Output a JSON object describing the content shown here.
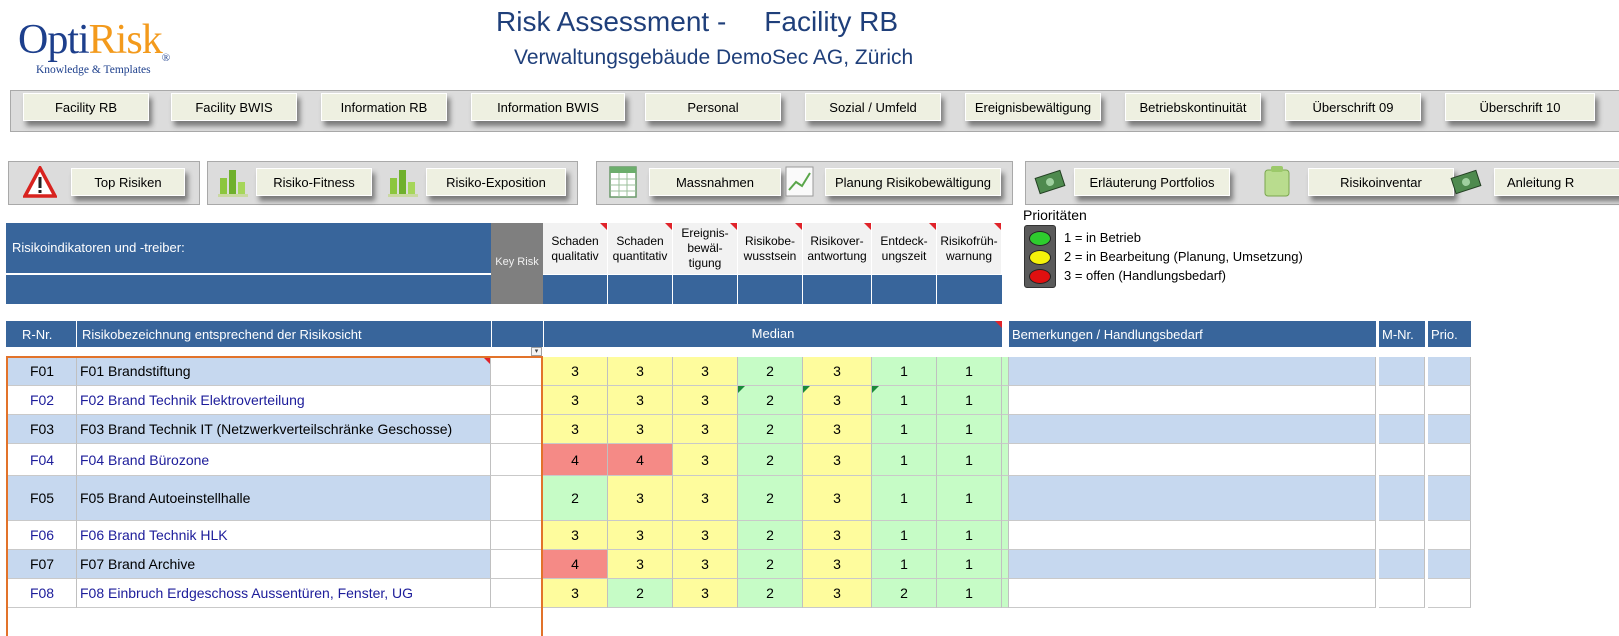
{
  "logo": {
    "part1": "Opti",
    "part2": "Risk",
    "reg": "®",
    "tagline": "Knowledge & Templates"
  },
  "title": {
    "line1a": "Risk Assessment -",
    "line1b": "Facility RB",
    "line2": "Verwaltungsgebäude DemoSec AG, Zürich"
  },
  "nav_tabs": [
    "Facility RB",
    "Facility BWIS",
    "Information  RB",
    "Information  BWIS",
    "Personal",
    "Sozial / Umfeld",
    "Ereignisbewältigung",
    "Betriebskontinuität",
    "Überschrift 09",
    "Überschrift 10"
  ],
  "nav_tools": {
    "top_risiken": "Top Risiken",
    "risiko_fitness": "Risiko-Fitness",
    "risiko_exposition": "Risiko-Exposition",
    "massnahmen": "Massnahmen",
    "planung": "Planung Risikobewältigung",
    "erlaeuterung": "Erläuterung Portfolios",
    "risikoinventar": "Risikoinventar",
    "anleitung": "Anleitung R"
  },
  "indicators": {
    "label": "Risikoindikatoren und -treiber:",
    "key_risk": "Key Risk",
    "columns": [
      "Schaden qualitativ",
      "Schaden quantitativ",
      "Ereignis-bewäl-tigung",
      "Risikobe-wusstsein",
      "Risikover-antwortung",
      "Entdeck-ungszeit",
      "Risikofrüh-warnung"
    ]
  },
  "priorities": {
    "title": "Prioritäten",
    "items": [
      "1 = in Betrieb",
      "2 = in Bearbeitung (Planung, Umsetzung)",
      "3 = offen (Handlungsbedarf)"
    ],
    "colors": {
      "green": "#2ecc2e",
      "yellow": "#f5f20a",
      "red": "#e01010"
    }
  },
  "table": {
    "headers": {
      "rnr": "R-Nr.",
      "bezeichnung": "Risikobezeichnung entsprechend der Risikosicht",
      "median": "Median",
      "bemerkungen": "Bemerkungen / Handlungsbedarf",
      "mnr": "M-Nr.",
      "prio": "Prio."
    },
    "rows": [
      {
        "id": "F01",
        "name": "F01  Brandstiftung",
        "values": [
          "3",
          "3",
          "3",
          "2",
          "3",
          "1",
          "1"
        ],
        "colors": [
          "y",
          "y",
          "y",
          "g",
          "y",
          "g",
          "g"
        ]
      },
      {
        "id": "F02",
        "name": "F02  Brand Technik Elektroverteilung",
        "values": [
          "3",
          "3",
          "3",
          "2",
          "3",
          "1",
          "1"
        ],
        "colors": [
          "y",
          "y",
          "y",
          "g",
          "y",
          "g",
          "g"
        ]
      },
      {
        "id": "F03",
        "name": "F03  Brand Technik IT (Netzwerkverteilschränke Geschosse)",
        "values": [
          "3",
          "3",
          "3",
          "2",
          "3",
          "1",
          "1"
        ],
        "colors": [
          "y",
          "y",
          "y",
          "g",
          "y",
          "g",
          "g"
        ]
      },
      {
        "id": "F04",
        "name": "F04  Brand Bürozone",
        "values": [
          "4",
          "4",
          "3",
          "2",
          "3",
          "1",
          "1"
        ],
        "colors": [
          "r",
          "r",
          "y",
          "g",
          "y",
          "g",
          "g"
        ]
      },
      {
        "id": "F05",
        "name": "F05  Brand Autoeinstellhalle",
        "values": [
          "2",
          "3",
          "3",
          "2",
          "3",
          "1",
          "1"
        ],
        "colors": [
          "g",
          "y",
          "y",
          "g",
          "y",
          "g",
          "g"
        ]
      },
      {
        "id": "F06",
        "name": "F06  Brand Technik HLK",
        "values": [
          "3",
          "3",
          "3",
          "2",
          "3",
          "1",
          "1"
        ],
        "colors": [
          "y",
          "y",
          "y",
          "g",
          "y",
          "g",
          "g"
        ]
      },
      {
        "id": "F07",
        "name": "F07  Brand Archive",
        "values": [
          "4",
          "3",
          "3",
          "2",
          "3",
          "1",
          "1"
        ],
        "colors": [
          "r",
          "y",
          "y",
          "g",
          "y",
          "g",
          "g"
        ]
      },
      {
        "id": "F08",
        "name": "F08  Einbruch Erdgeschoss Aussentüren, Fenster, UG",
        "values": [
          "3",
          "2",
          "3",
          "2",
          "3",
          "2",
          "1"
        ],
        "colors": [
          "y",
          "g",
          "y",
          "g",
          "y",
          "g",
          "g"
        ]
      }
    ]
  }
}
